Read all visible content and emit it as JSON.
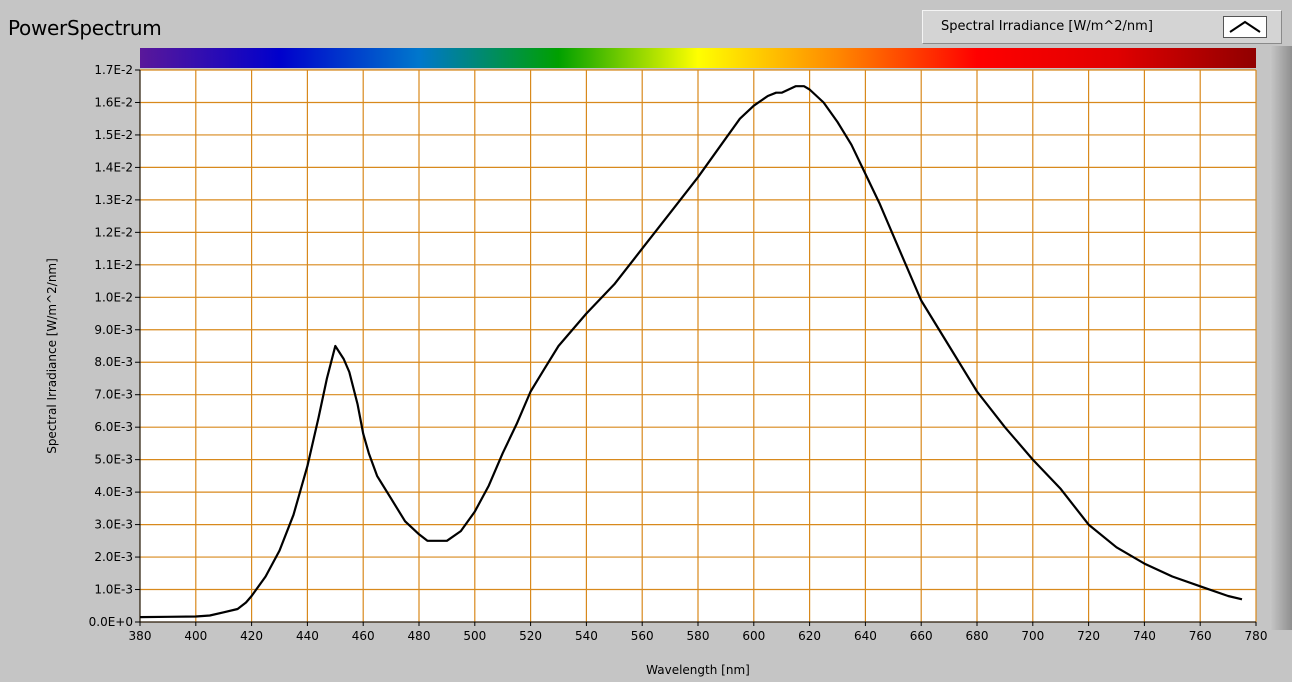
{
  "window": {
    "title": "PowerSpectrum"
  },
  "legend": {
    "label": "Spectral Irradiance [W/m^2/nm]"
  },
  "colors": {
    "background": "#c5c5c5",
    "plot_bg": "#ffffff",
    "grid": "#d8891c",
    "line": "#000000"
  },
  "spectrum_bar": {
    "stops": [
      "#5a189a",
      "#0000cc",
      "#0077cc",
      "#00a000",
      "#ffff00",
      "#ff8800",
      "#ff0000",
      "#e00000",
      "#900000"
    ]
  },
  "chart_data": {
    "type": "line",
    "title": "",
    "xlabel": "Wavelength [nm]",
    "ylabel": "Spectral Irradiance [W/m^2/nm]",
    "xlim": [
      380,
      780
    ],
    "ylim": [
      0,
      0.017
    ],
    "grid": true,
    "x_ticks": [
      "380",
      "400",
      "420",
      "440",
      "460",
      "480",
      "500",
      "520",
      "540",
      "560",
      "580",
      "600",
      "620",
      "640",
      "660",
      "680",
      "700",
      "720",
      "740",
      "760",
      "780"
    ],
    "y_ticks": [
      "0.0E+0",
      "1.0E-3",
      "2.0E-3",
      "3.0E-3",
      "4.0E-3",
      "5.0E-3",
      "6.0E-3",
      "7.0E-3",
      "8.0E-3",
      "9.0E-3",
      "1.0E-2",
      "1.1E-2",
      "1.2E-2",
      "1.3E-2",
      "1.4E-2",
      "1.5E-2",
      "1.6E-2",
      "1.7E-2"
    ],
    "series": [
      {
        "name": "Spectral Irradiance [W/m^2/nm]",
        "x": [
          380,
          390,
          400,
          405,
          410,
          415,
          418,
          420,
          425,
          430,
          435,
          440,
          444,
          447,
          450,
          453,
          455,
          458,
          460,
          462,
          465,
          470,
          475,
          480,
          483,
          487,
          490,
          495,
          500,
          505,
          510,
          515,
          520,
          525,
          530,
          540,
          550,
          560,
          570,
          580,
          590,
          595,
          600,
          605,
          608,
          610,
          615,
          618,
          620,
          625,
          630,
          635,
          640,
          645,
          650,
          660,
          670,
          680,
          690,
          700,
          710,
          720,
          730,
          740,
          750,
          760,
          770,
          775
        ],
        "y": [
          0.00015,
          0.00016,
          0.00017,
          0.0002,
          0.0003,
          0.0004,
          0.0006,
          0.0008,
          0.0014,
          0.0022,
          0.0033,
          0.0048,
          0.0063,
          0.0075,
          0.0085,
          0.0081,
          0.0077,
          0.0067,
          0.0058,
          0.0052,
          0.0045,
          0.0038,
          0.0031,
          0.0027,
          0.0025,
          0.0025,
          0.0025,
          0.0028,
          0.0034,
          0.0042,
          0.0052,
          0.0061,
          0.0071,
          0.0078,
          0.0085,
          0.0095,
          0.0104,
          0.0115,
          0.0126,
          0.0137,
          0.0149,
          0.0155,
          0.0159,
          0.0162,
          0.0163,
          0.0163,
          0.0165,
          0.0165,
          0.0164,
          0.016,
          0.0154,
          0.0147,
          0.0138,
          0.0129,
          0.0119,
          0.0099,
          0.0085,
          0.0071,
          0.006,
          0.005,
          0.0041,
          0.003,
          0.0023,
          0.0018,
          0.0014,
          0.0011,
          0.0008,
          0.0007
        ]
      }
    ]
  }
}
